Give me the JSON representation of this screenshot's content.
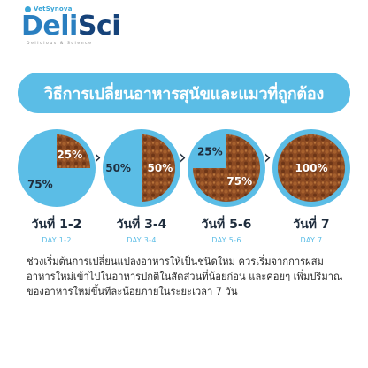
{
  "brand": {
    "sub": "VetSynova",
    "name_part1": "Deli",
    "name_part2": "Sci",
    "tagline": "Delicious & Science"
  },
  "banner": {
    "title": "วิธีการเปลี่ยนอาหารสุนัขและแมวที่ถูกต้อง"
  },
  "colors": {
    "accent": "#5bbde6",
    "food": "#8b4a22",
    "text": "#1f2d3d"
  },
  "stages": [
    {
      "day_th": "วันที่ 1-2",
      "day_en": "DAY 1-2",
      "new_percent": 25,
      "old_percent": 75,
      "new_label": "25%",
      "old_label": "75%"
    },
    {
      "day_th": "วันที่ 3-4",
      "day_en": "DAY 3-4",
      "new_percent": 50,
      "old_percent": 50,
      "new_label": "50%",
      "old_label": "50%"
    },
    {
      "day_th": "วันที่ 5-6",
      "day_en": "DAY 5-6",
      "new_percent": 75,
      "old_percent": 25,
      "new_label": "75%",
      "old_label": "25%"
    },
    {
      "day_th": "วันที่ 7",
      "day_en": "DAY 7",
      "new_percent": 100,
      "old_percent": 0,
      "new_label": "100%",
      "old_label": ""
    }
  ],
  "arrow_icon": "chevron-right-icon",
  "description": "ช่วงเริ่มต้นการเปลี่ยนแปลงอาหารให้เป็นชนิดใหม่ ควรเริ่มจากการผสมอาหารใหม่เข้าไปในอาหารปกติในสัดส่วนที่น้อยก่อน และค่อยๆ เพิ่มปริมาณของอาหารใหม่ขึ้นทีละน้อยภายในระยะเวลา 7 วัน"
}
